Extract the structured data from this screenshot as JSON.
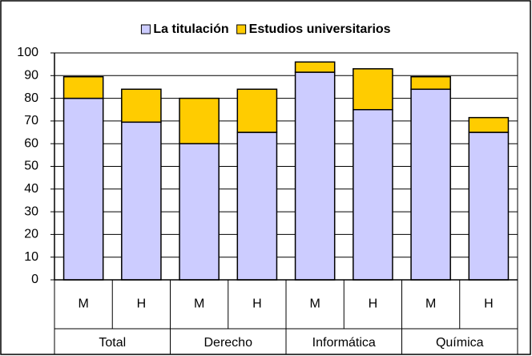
{
  "chart_data": {
    "type": "stacked_bar",
    "categories": [
      "M",
      "H",
      "M",
      "H",
      "M",
      "H",
      "M",
      "H"
    ],
    "groups": [
      "Total",
      "Derecho",
      "Informática",
      "Química"
    ],
    "series": [
      {
        "name": "La titulación",
        "color": "#ccccff",
        "values": [
          80,
          69.5,
          60,
          65,
          91.5,
          75,
          84,
          65
        ]
      },
      {
        "name": "Estudios universitarios",
        "color": "#ffcc00",
        "values": [
          9.5,
          14.5,
          20,
          19,
          4.5,
          18,
          5.5,
          6.5
        ]
      }
    ],
    "ylim": [
      0,
      100
    ],
    "yticks": [
      0,
      10,
      20,
      30,
      40,
      50,
      60,
      70,
      80,
      90,
      100
    ],
    "grid": true,
    "legend": "top"
  }
}
